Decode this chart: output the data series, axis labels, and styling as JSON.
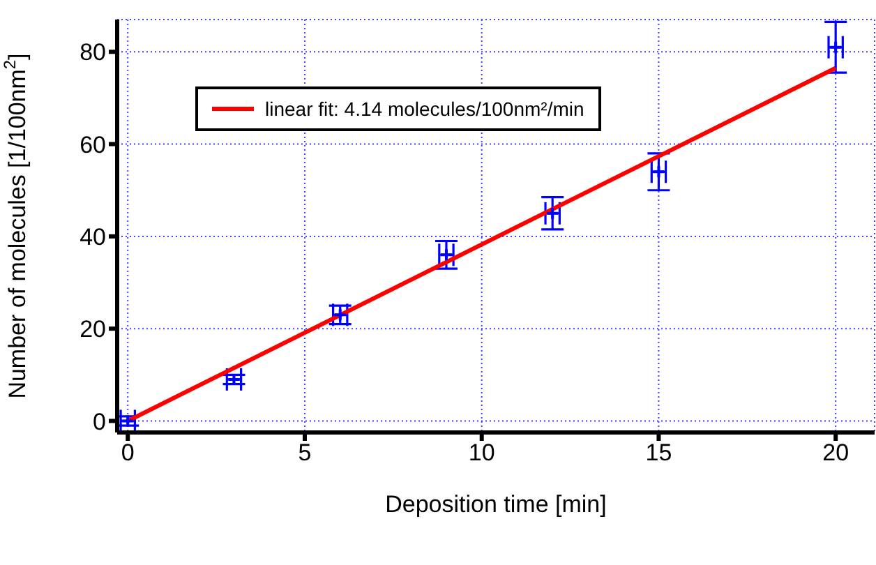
{
  "chart_data": {
    "type": "scatter",
    "xlabel": "Deposition time [min]",
    "ylabel": "Number of molecules [1/100nm$^{2}$]",
    "xlim": [
      -0.3,
      21.1
    ],
    "ylim": [
      -2.5,
      87
    ],
    "xticks": [
      0,
      5,
      10,
      15,
      20
    ],
    "yticks": [
      0,
      20,
      40,
      60,
      80
    ],
    "grid": true,
    "legend": "top left",
    "series": [
      {
        "color": "#0000ff",
        "marker": "cross",
        "x": [
          0,
          3,
          6,
          9,
          12,
          15,
          20
        ],
        "values": [
          0,
          9,
          23,
          36,
          45,
          54,
          81
        ],
        "errors": [
          1,
          1,
          2,
          3,
          3.5,
          4,
          5.5
        ],
        "xerrors": [
          0.2,
          0.2,
          0.2,
          0.2,
          0.2,
          0.2,
          0.2
        ]
      },
      {
        "type": "line",
        "name": "linear fit: 4.14 molecules/100nm²/min",
        "color": "#ff0000",
        "line_style": "solid",
        "marker": "none",
        "x": [
          0,
          20
        ],
        "values": [
          0,
          76.5
        ]
      }
    ]
  }
}
